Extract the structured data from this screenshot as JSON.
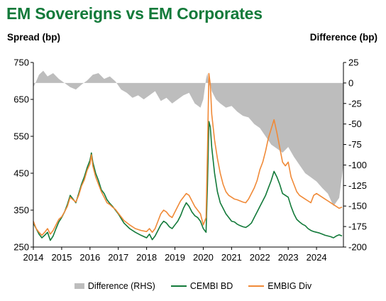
{
  "chart_data": {
    "type": "line",
    "title": "EM Sovereigns vs EM Corporates",
    "ylabel_left": "Spread (bp)",
    "ylabel_right": "Difference (bp)",
    "xlabel": "",
    "x_ticks": [
      "2014",
      "2015",
      "2016",
      "2017",
      "2018",
      "2019",
      "2020",
      "2021",
      "2022",
      "2023",
      "2024"
    ],
    "xlim": [
      2014.0,
      2024.95
    ],
    "ylim_left": [
      250,
      750
    ],
    "ylim_right": [
      -200,
      25
    ],
    "y_ticks_left": [
      250,
      350,
      450,
      550,
      650,
      750
    ],
    "y_ticks_right": [
      25,
      0,
      -25,
      -50,
      -75,
      -100,
      -125,
      -150,
      -175,
      -200
    ],
    "grid": false,
    "legend_position": "bottom",
    "series": [
      {
        "name": "Difference (RHS)",
        "axis": "right",
        "kind": "area",
        "color": "#bdbdbd",
        "x": [
          2014.0,
          2014.1,
          2014.2,
          2014.35,
          2014.5,
          2014.7,
          2014.9,
          2015.1,
          2015.3,
          2015.5,
          2015.7,
          2015.9,
          2016.1,
          2016.3,
          2016.5,
          2016.7,
          2016.9,
          2017.1,
          2017.3,
          2017.5,
          2017.7,
          2017.9,
          2018.1,
          2018.3,
          2018.5,
          2018.7,
          2018.9,
          2019.1,
          2019.3,
          2019.5,
          2019.7,
          2019.9,
          2020.0,
          2020.1,
          2020.15,
          2020.2,
          2020.25,
          2020.3,
          2020.45,
          2020.6,
          2020.8,
          2021.0,
          2021.2,
          2021.4,
          2021.6,
          2021.8,
          2022.0,
          2022.2,
          2022.4,
          2022.6,
          2022.8,
          2023.0,
          2023.2,
          2023.4,
          2023.6,
          2023.8,
          2024.0,
          2024.2,
          2024.4,
          2024.6,
          2024.8,
          2024.95
        ],
        "values": [
          -5,
          2,
          10,
          15,
          8,
          12,
          5,
          0,
          -5,
          -8,
          -2,
          3,
          10,
          12,
          5,
          8,
          2,
          -8,
          -12,
          -18,
          -15,
          -20,
          -15,
          -10,
          -22,
          -18,
          -25,
          -20,
          -15,
          -12,
          -25,
          -30,
          -20,
          5,
          12,
          -5,
          0,
          -10,
          -20,
          -25,
          -30,
          -28,
          -35,
          -40,
          -42,
          -50,
          -55,
          -65,
          -75,
          -80,
          -85,
          -78,
          -90,
          -100,
          -110,
          -115,
          -120,
          -128,
          -135,
          -150,
          -140,
          -100
        ]
      },
      {
        "name": "CEMBI BD",
        "axis": "left",
        "kind": "line",
        "color": "#137a3a",
        "x": [
          2014.0,
          2014.1,
          2014.2,
          2014.3,
          2014.4,
          2014.5,
          2014.6,
          2014.7,
          2014.8,
          2014.9,
          2015.0,
          2015.1,
          2015.2,
          2015.3,
          2015.4,
          2015.5,
          2015.6,
          2015.7,
          2015.8,
          2015.9,
          2016.0,
          2016.05,
          2016.1,
          2016.2,
          2016.3,
          2016.4,
          2016.5,
          2016.6,
          2016.7,
          2016.8,
          2016.9,
          2017.0,
          2017.2,
          2017.4,
          2017.6,
          2017.8,
          2018.0,
          2018.1,
          2018.2,
          2018.3,
          2018.4,
          2018.5,
          2018.6,
          2018.7,
          2018.8,
          2018.9,
          2019.0,
          2019.1,
          2019.2,
          2019.3,
          2019.4,
          2019.5,
          2019.6,
          2019.7,
          2019.8,
          2019.9,
          2020.0,
          2020.1,
          2020.15,
          2020.2,
          2020.25,
          2020.3,
          2020.4,
          2020.5,
          2020.6,
          2020.7,
          2020.8,
          2020.9,
          2021.0,
          2021.1,
          2021.2,
          2021.3,
          2021.4,
          2021.5,
          2021.6,
          2021.7,
          2021.8,
          2021.9,
          2022.0,
          2022.1,
          2022.2,
          2022.3,
          2022.4,
          2022.5,
          2022.6,
          2022.7,
          2022.8,
          2022.9,
          2023.0,
          2023.1,
          2023.2,
          2023.3,
          2023.4,
          2023.5,
          2023.6,
          2023.7,
          2023.8,
          2023.9,
          2024.0,
          2024.1,
          2024.2,
          2024.3,
          2024.4,
          2024.5,
          2024.6,
          2024.7,
          2024.8,
          2024.9
        ],
        "values": [
          315,
          300,
          285,
          275,
          282,
          290,
          268,
          280,
          300,
          318,
          330,
          345,
          365,
          390,
          380,
          370,
          395,
          420,
          440,
          465,
          485,
          505,
          480,
          450,
          430,
          405,
          395,
          378,
          368,
          360,
          350,
          340,
          315,
          300,
          290,
          282,
          275,
          285,
          270,
          280,
          295,
          310,
          320,
          315,
          305,
          300,
          310,
          320,
          335,
          355,
          370,
          360,
          345,
          335,
          330,
          320,
          300,
          290,
          420,
          590,
          575,
          520,
          450,
          400,
          370,
          355,
          340,
          330,
          320,
          318,
          312,
          308,
          305,
          303,
          308,
          315,
          330,
          345,
          360,
          375,
          390,
          410,
          430,
          455,
          440,
          420,
          395,
          390,
          385,
          360,
          340,
          325,
          318,
          312,
          308,
          300,
          295,
          292,
          290,
          288,
          285,
          282,
          280,
          278,
          275,
          280,
          283,
          280
        ]
      },
      {
        "name": "EMBIG Div",
        "axis": "left",
        "kind": "line",
        "color": "#f08a38",
        "x": [
          2014.0,
          2014.1,
          2014.2,
          2014.3,
          2014.4,
          2014.5,
          2014.6,
          2014.7,
          2014.8,
          2014.9,
          2015.0,
          2015.1,
          2015.2,
          2015.3,
          2015.4,
          2015.5,
          2015.6,
          2015.7,
          2015.8,
          2015.9,
          2016.0,
          2016.05,
          2016.1,
          2016.2,
          2016.3,
          2016.4,
          2016.5,
          2016.6,
          2016.7,
          2016.8,
          2016.9,
          2017.0,
          2017.2,
          2017.4,
          2017.6,
          2017.8,
          2018.0,
          2018.1,
          2018.2,
          2018.3,
          2018.4,
          2018.5,
          2018.6,
          2018.7,
          2018.8,
          2018.9,
          2019.0,
          2019.1,
          2019.2,
          2019.3,
          2019.4,
          2019.5,
          2019.6,
          2019.7,
          2019.8,
          2019.9,
          2020.0,
          2020.1,
          2020.15,
          2020.2,
          2020.25,
          2020.3,
          2020.4,
          2020.5,
          2020.6,
          2020.7,
          2020.8,
          2020.9,
          2021.0,
          2021.1,
          2021.2,
          2021.3,
          2021.4,
          2021.5,
          2021.6,
          2021.7,
          2021.8,
          2021.9,
          2022.0,
          2022.1,
          2022.2,
          2022.3,
          2022.4,
          2022.5,
          2022.6,
          2022.7,
          2022.8,
          2022.9,
          2023.0,
          2023.1,
          2023.2,
          2023.3,
          2023.4,
          2023.5,
          2023.6,
          2023.7,
          2023.8,
          2023.9,
          2024.0,
          2024.1,
          2024.2,
          2024.3,
          2024.4,
          2024.5,
          2024.6,
          2024.7,
          2024.8,
          2024.9
        ],
        "values": [
          320,
          300,
          290,
          282,
          290,
          300,
          285,
          295,
          310,
          325,
          332,
          345,
          360,
          385,
          378,
          372,
          390,
          415,
          432,
          458,
          475,
          500,
          470,
          440,
          420,
          400,
          385,
          370,
          365,
          358,
          352,
          342,
          322,
          310,
          300,
          295,
          292,
          300,
          290,
          300,
          320,
          340,
          350,
          345,
          335,
          330,
          345,
          360,
          375,
          385,
          395,
          390,
          375,
          360,
          350,
          340,
          310,
          330,
          510,
          720,
          690,
          610,
          540,
          490,
          450,
          420,
          400,
          390,
          385,
          380,
          378,
          375,
          372,
          370,
          380,
          395,
          410,
          430,
          460,
          480,
          510,
          545,
          570,
          595,
          560,
          520,
          480,
          470,
          480,
          440,
          420,
          400,
          390,
          385,
          380,
          375,
          370,
          390,
          395,
          390,
          385,
          380,
          375,
          370,
          365,
          360,
          355,
          358
        ]
      }
    ]
  }
}
